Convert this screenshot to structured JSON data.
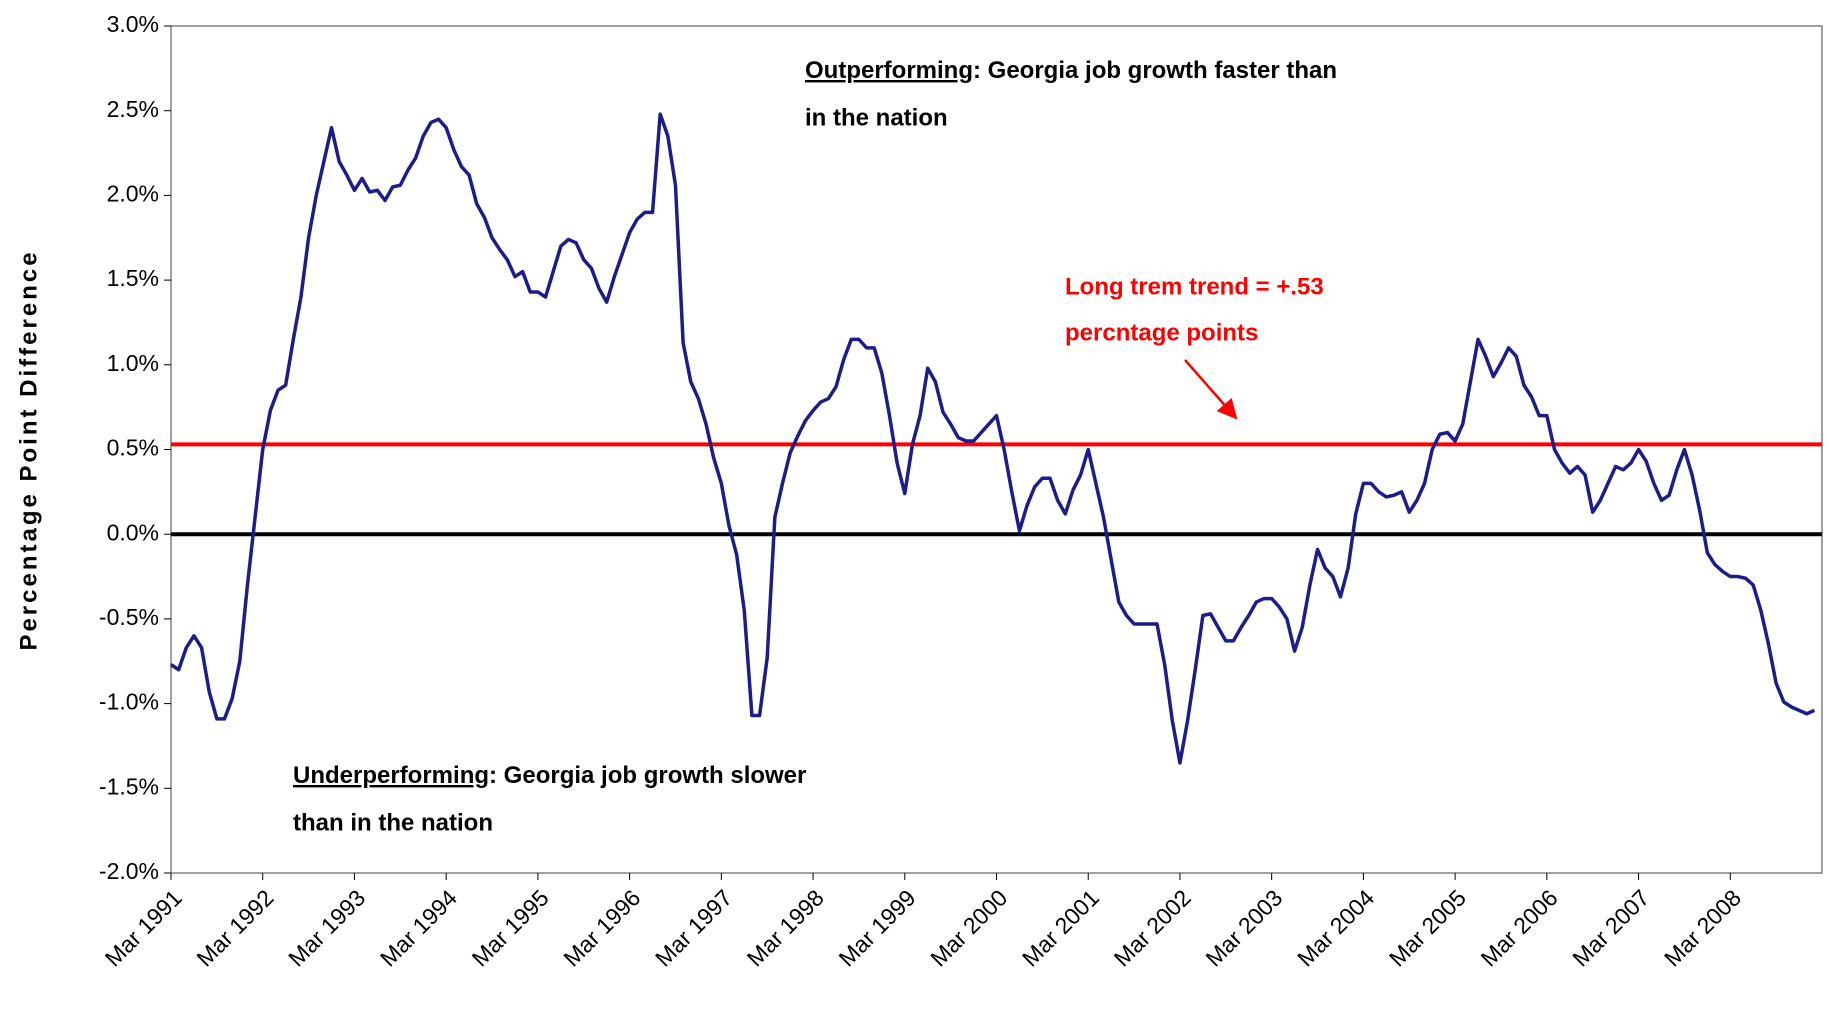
{
  "chart_data": {
    "type": "line",
    "y_axis_label": "Percentage Point Difference",
    "ylim": [
      -2,
      3
    ],
    "yticks": [
      {
        "value": -2,
        "label": "-2.0%"
      },
      {
        "value": -1.5,
        "label": "-1.5%"
      },
      {
        "value": -1,
        "label": "-1.0%"
      },
      {
        "value": -0.5,
        "label": "-0.5%"
      },
      {
        "value": 0,
        "label": "0.0%"
      },
      {
        "value": 0.5,
        "label": "0.5%"
      },
      {
        "value": 1,
        "label": "1.0%"
      },
      {
        "value": 1.5,
        "label": "1.5%"
      },
      {
        "value": 2,
        "label": "2.0%"
      },
      {
        "value": 2.5,
        "label": "2.5%"
      },
      {
        "value": 3,
        "label": "3.0%"
      }
    ],
    "zero_line_color": "#000000",
    "categories": [
      "Mar 1991",
      null,
      null,
      null,
      null,
      null,
      null,
      null,
      null,
      null,
      null,
      null,
      "Mar 1992",
      null,
      null,
      null,
      null,
      null,
      null,
      null,
      null,
      null,
      null,
      null,
      "Mar 1993",
      null,
      null,
      null,
      null,
      null,
      null,
      null,
      null,
      null,
      null,
      null,
      "Mar 1994",
      null,
      null,
      null,
      null,
      null,
      null,
      null,
      null,
      null,
      null,
      null,
      "Mar 1995",
      null,
      null,
      null,
      null,
      null,
      null,
      null,
      null,
      null,
      null,
      null,
      "Mar 1996",
      null,
      null,
      null,
      null,
      null,
      null,
      null,
      null,
      null,
      null,
      null,
      "Mar 1997",
      null,
      null,
      null,
      null,
      null,
      null,
      null,
      null,
      null,
      null,
      null,
      "Mar 1998",
      null,
      null,
      null,
      null,
      null,
      null,
      null,
      null,
      null,
      null,
      null,
      "Mar 1999",
      null,
      null,
      null,
      null,
      null,
      null,
      null,
      null,
      null,
      null,
      null,
      "Mar 2000",
      null,
      null,
      null,
      null,
      null,
      null,
      null,
      null,
      null,
      null,
      null,
      "Mar 2001",
      null,
      null,
      null,
      null,
      null,
      null,
      null,
      null,
      null,
      null,
      null,
      "Mar 2002",
      null,
      null,
      null,
      null,
      null,
      null,
      null,
      null,
      null,
      null,
      null,
      "Mar 2003",
      null,
      null,
      null,
      null,
      null,
      null,
      null,
      null,
      null,
      null,
      null,
      "Mar 2004",
      null,
      null,
      null,
      null,
      null,
      null,
      null,
      null,
      null,
      null,
      null,
      "Mar 2005",
      null,
      null,
      null,
      null,
      null,
      null,
      null,
      null,
      null,
      null,
      null,
      "Mar 2006",
      null,
      null,
      null,
      null,
      null,
      null,
      null,
      null,
      null,
      null,
      null,
      "Mar 2007",
      null,
      null,
      null,
      null,
      null,
      null,
      null,
      null,
      null,
      null,
      null,
      "Mar 2008",
      null,
      null,
      null,
      null,
      null,
      null,
      null,
      null,
      null,
      null,
      null
    ],
    "series": [
      {
        "color": "#1c1c8a",
        "values": [
          -0.77,
          -0.8,
          -0.67,
          -0.6,
          -0.67,
          -0.93,
          -1.09,
          -1.09,
          -0.97,
          -0.75,
          -0.3,
          0.1,
          0.5,
          0.73,
          0.85,
          0.88,
          1.15,
          1.4,
          1.75,
          2.0,
          2.2,
          2.4,
          2.2,
          2.12,
          2.03,
          2.1,
          2.02,
          2.03,
          1.97,
          2.05,
          2.06,
          2.15,
          2.22,
          2.35,
          2.43,
          2.45,
          2.4,
          2.27,
          2.17,
          2.12,
          1.95,
          1.87,
          1.75,
          1.68,
          1.62,
          1.52,
          1.55,
          1.43,
          1.43,
          1.4,
          1.55,
          1.7,
          1.74,
          1.72,
          1.62,
          1.57,
          1.45,
          1.37,
          1.52,
          1.65,
          1.78,
          1.86,
          1.9,
          1.9,
          2.48,
          2.35,
          2.06,
          1.13,
          0.9,
          0.8,
          0.65,
          0.45,
          0.3,
          0.05,
          -0.12,
          -0.45,
          -1.07,
          -1.07,
          -0.73,
          0.1,
          0.3,
          0.48,
          0.58,
          0.67,
          0.73,
          0.78,
          0.8,
          0.87,
          1.03,
          1.15,
          1.15,
          1.1,
          1.1,
          0.95,
          0.7,
          0.42,
          0.24,
          0.53,
          0.7,
          0.98,
          0.9,
          0.72,
          0.65,
          0.57,
          0.55,
          0.55,
          0.6,
          0.65,
          0.7,
          0.5,
          0.25,
          0.02,
          0.17,
          0.28,
          0.33,
          0.33,
          0.2,
          0.12,
          0.26,
          0.35,
          0.5,
          0.3,
          0.1,
          -0.15,
          -0.4,
          -0.48,
          -0.53,
          -0.53,
          -0.53,
          -0.53,
          -0.77,
          -1.1,
          -1.35,
          -1.1,
          -0.8,
          -0.48,
          -0.47,
          -0.55,
          -0.63,
          -0.63,
          -0.55,
          -0.48,
          -0.4,
          -0.38,
          -0.38,
          -0.43,
          -0.5,
          -0.69,
          -0.55,
          -0.3,
          -0.09,
          -0.2,
          -0.25,
          -0.37,
          -0.2,
          0.12,
          0.3,
          0.3,
          0.25,
          0.22,
          0.23,
          0.25,
          0.13,
          0.2,
          0.3,
          0.5,
          0.59,
          0.6,
          0.55,
          0.65,
          0.9,
          1.15,
          1.05,
          0.93,
          1.01,
          1.1,
          1.05,
          0.88,
          0.81,
          0.7,
          0.7,
          0.5,
          0.42,
          0.36,
          0.4,
          0.35,
          0.13,
          0.2,
          0.3,
          0.4,
          0.38,
          0.42,
          0.5,
          0.43,
          0.3,
          0.2,
          0.23,
          0.38,
          0.5,
          0.35,
          0.14,
          -0.11,
          -0.18,
          -0.22,
          -0.25,
          -0.25,
          -0.26,
          -0.3,
          -0.45,
          -0.65,
          -0.88,
          -0.99,
          -1.02,
          -1.04,
          -1.06,
          -1.04
        ]
      }
    ],
    "trend": {
      "value": 0.53,
      "color": "#ff0000",
      "label_lines": [
        "Long trem trend = +.53",
        "percntage points"
      ]
    },
    "annotations": [
      {
        "underlined": "Outperforming",
        "text": ": Georgia job growth faster than",
        "continuation": "in the nation"
      },
      {
        "underlined": "Underperforming",
        "text": ": Georgia job growth slower",
        "continuation": "than in the nation"
      }
    ]
  }
}
